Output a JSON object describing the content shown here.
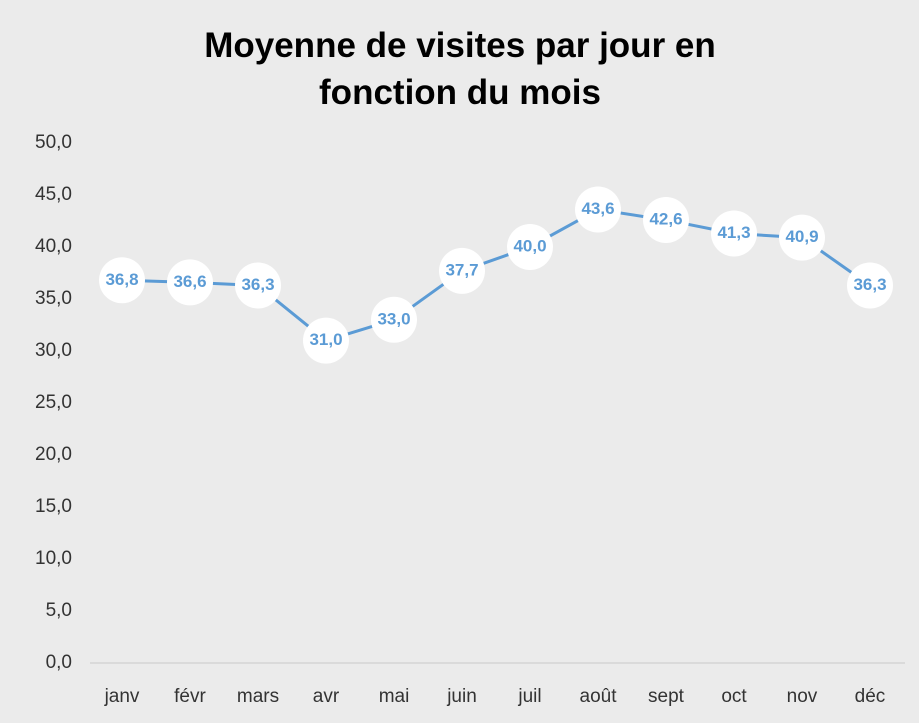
{
  "chart_data": {
    "type": "line",
    "title": "Moyenne de visites par jour en fonction du mois",
    "categories": [
      "janv",
      "févr",
      "mars",
      "avr",
      "mai",
      "juin",
      "juil",
      "août",
      "sept",
      "oct",
      "nov",
      "déc"
    ],
    "series": [
      {
        "name": "Moyenne de visites par jour",
        "color": "#5b9bd5",
        "values": [
          36.8,
          36.6,
          36.3,
          31.0,
          33.0,
          37.7,
          40.0,
          43.6,
          42.6,
          41.3,
          40.9,
          36.3
        ],
        "value_labels": [
          "36,8",
          "36,6",
          "36,3",
          "31,0",
          "33,0",
          "37,7",
          "40,0",
          "43,6",
          "42,6",
          "41,3",
          "40,9",
          "36,3"
        ]
      }
    ],
    "ylim": [
      0,
      50
    ],
    "yticks": [
      {
        "value": 0,
        "label": "0,0"
      },
      {
        "value": 5,
        "label": "5,0"
      },
      {
        "value": 10,
        "label": "10,0"
      },
      {
        "value": 15,
        "label": "15,0"
      },
      {
        "value": 20,
        "label": "20,0"
      },
      {
        "value": 25,
        "label": "25,0"
      },
      {
        "value": 30,
        "label": "30,0"
      },
      {
        "value": 35,
        "label": "35,0"
      },
      {
        "value": 40,
        "label": "40,0"
      },
      {
        "value": 45,
        "label": "45,0"
      },
      {
        "value": 50,
        "label": "50,0"
      }
    ],
    "grid": false
  }
}
